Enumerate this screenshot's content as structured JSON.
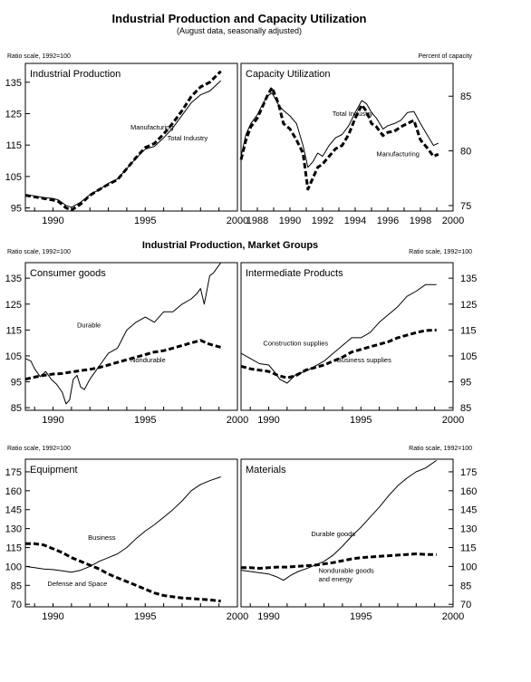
{
  "header": {
    "title": "Industrial Production and Capacity Utilization",
    "subtitle": "(August data, seasonally adjusted)"
  },
  "notes": {
    "ratio_scale": "Ratio scale, 1992=100",
    "percent_of_capacity": "Percent of capacity"
  },
  "section_title": "Industrial Production, Market Groups",
  "chart_data": [
    {
      "id": "ip",
      "type": "line",
      "title": "Industrial Production",
      "y_note": "Ratio scale, 1992=100",
      "xlim": [
        1988.5,
        2000
      ],
      "xticks": [
        1990,
        1995,
        2000
      ],
      "ylim": [
        94,
        141
      ],
      "yticks": [
        95,
        105,
        115,
        125,
        135
      ],
      "series": [
        {
          "name": "Manufacturing",
          "style": "dashed",
          "x": [
            1988.5,
            1989,
            1989.5,
            1990,
            1990.3,
            1990.7,
            1991,
            1991.5,
            1992,
            1992.5,
            1993,
            1993.5,
            1994,
            1994.5,
            1995,
            1995.5,
            1996,
            1996.5,
            1997,
            1997.5,
            1998,
            1998.5,
            1999.1
          ],
          "y": [
            99,
            98.5,
            98,
            97.5,
            97,
            95,
            94.3,
            96.2,
            99,
            100.8,
            102.5,
            104,
            107.5,
            111,
            114.2,
            115.5,
            118.5,
            122,
            126,
            130.5,
            133.5,
            135,
            138.5
          ]
        },
        {
          "name": "Total Industry",
          "style": "solid",
          "x": [
            1988.5,
            1989,
            1989.5,
            1990,
            1990.3,
            1990.7,
            1991,
            1991.5,
            1992,
            1992.5,
            1993,
            1993.5,
            1994,
            1994.5,
            1995,
            1995.5,
            1996,
            1996.5,
            1997,
            1997.5,
            1998,
            1998.5,
            1999.1
          ],
          "y": [
            99.3,
            98.8,
            98.3,
            98,
            97.5,
            95.8,
            95.2,
            96.8,
            99.2,
            100.8,
            102.8,
            104.2,
            107.5,
            110.8,
            113.7,
            114.6,
            117.3,
            120.5,
            124.5,
            128.5,
            131,
            132.2,
            135.5
          ]
        }
      ],
      "annotations": [
        {
          "text": "Manufacturing",
          "x": 1994.2,
          "y": 120
        },
        {
          "text": "Total Industry",
          "x": 1996.2,
          "y": 116.5
        }
      ]
    },
    {
      "id": "cu",
      "type": "line",
      "title": "Capacity Utilization",
      "y_note": "Percent of capacity",
      "xlim": [
        1987,
        2000
      ],
      "xticks": [
        1988,
        1990,
        1992,
        1994,
        1996,
        1998,
        2000
      ],
      "ylim": [
        74.5,
        88
      ],
      "yticks": [
        75,
        80,
        85
      ],
      "series": [
        {
          "name": "Total Industry",
          "style": "solid",
          "x": [
            1987,
            1987.3,
            1987.6,
            1988,
            1988.3,
            1988.6,
            1988.9,
            1989.3,
            1989.6,
            1990,
            1990.4,
            1990.8,
            1991.1,
            1991.4,
            1991.7,
            1992,
            1992.4,
            1992.8,
            1993.2,
            1993.6,
            1994,
            1994.4,
            1994.7,
            1995,
            1995.3,
            1995.7,
            1996,
            1996.4,
            1996.8,
            1997.2,
            1997.6,
            1998,
            1998.4,
            1998.8,
            1999.1
          ],
          "y": [
            79.5,
            81.5,
            82.5,
            83.3,
            84.2,
            85,
            85.3,
            84.2,
            83.7,
            83.2,
            82.5,
            80.5,
            78.5,
            79,
            79.8,
            79.5,
            80.5,
            81.2,
            81.5,
            82.3,
            83.5,
            84.6,
            84.3,
            83.5,
            83,
            82,
            82.3,
            82.5,
            82.8,
            83.5,
            83.6,
            82.5,
            81.5,
            80.5,
            80.7
          ]
        },
        {
          "name": "Manufacturing",
          "style": "dashed",
          "x": [
            1987,
            1987.3,
            1987.6,
            1988,
            1988.3,
            1988.6,
            1988.9,
            1989.3,
            1989.6,
            1990,
            1990.4,
            1990.8,
            1991.1,
            1991.4,
            1991.7,
            1992,
            1992.4,
            1992.8,
            1993.2,
            1993.6,
            1994,
            1994.4,
            1994.7,
            1995,
            1995.3,
            1995.7,
            1996,
            1996.4,
            1996.8,
            1997.2,
            1997.6,
            1998,
            1998.4,
            1998.8,
            1999.1
          ],
          "y": [
            79.2,
            81,
            82.2,
            83,
            84,
            85,
            85.8,
            84.3,
            82.5,
            82,
            81,
            79.8,
            76.5,
            77.5,
            78.5,
            78.8,
            79.5,
            80.2,
            80.5,
            81.5,
            83,
            84.2,
            83.6,
            82.5,
            82.2,
            81.4,
            81.7,
            81.8,
            82.2,
            82.5,
            82.8,
            81,
            80.3,
            79.5,
            79.7
          ]
        }
      ],
      "annotations": [
        {
          "text": "Total Industry",
          "x": 1992.6,
          "y": 83.2
        },
        {
          "text": "Manufacturing",
          "x": 1995.3,
          "y": 79.5
        }
      ]
    },
    {
      "id": "consumer",
      "type": "line",
      "title": "Consumer goods",
      "y_note": "Ratio scale, 1992=100",
      "xlim": [
        1988.5,
        2000
      ],
      "xticks": [
        1990,
        1995,
        2000
      ],
      "ylim": [
        84,
        141
      ],
      "yticks": [
        85,
        95,
        105,
        115,
        125,
        135
      ],
      "series": [
        {
          "name": "Durable",
          "style": "solid",
          "x": [
            1988.5,
            1988.8,
            1989,
            1989.3,
            1989.6,
            1989.9,
            1990.2,
            1990.5,
            1990.7,
            1990.9,
            1991.1,
            1991.3,
            1991.5,
            1991.7,
            1992,
            1992.3,
            1992.6,
            1993,
            1993.5,
            1994,
            1994.5,
            1995,
            1995.5,
            1996,
            1996.5,
            1997,
            1997.5,
            1997.8,
            1998,
            1998.2,
            1998.5,
            1998.7,
            1999.1
          ],
          "y": [
            104,
            103,
            100,
            97,
            99,
            96,
            94,
            91,
            86.5,
            88,
            96,
            97.5,
            93,
            92,
            96,
            99,
            102,
            106,
            108,
            115,
            118,
            120,
            118,
            122,
            122,
            125,
            127,
            129,
            131,
            125,
            136,
            137,
            141
          ]
        },
        {
          "name": "Nondurable",
          "style": "dashed",
          "x": [
            1988.5,
            1989,
            1989.5,
            1990,
            1990.5,
            1991,
            1991.5,
            1992,
            1992.5,
            1993,
            1993.5,
            1994,
            1994.5,
            1995,
            1995.5,
            1996,
            1996.5,
            1997,
            1997.5,
            1998,
            1998.5,
            1999.1
          ],
          "y": [
            96,
            96.8,
            97.5,
            98,
            98.2,
            98.8,
            99.3,
            99.8,
            100.5,
            101.5,
            102.5,
            103.5,
            104.5,
            105.5,
            106.5,
            107,
            108,
            109,
            110,
            111,
            109.5,
            108.3
          ]
        }
      ],
      "annotations": [
        {
          "text": "Durable",
          "x": 1991.3,
          "y": 116
        },
        {
          "text": "Nondurable",
          "x": 1994.2,
          "y": 102.5
        }
      ]
    },
    {
      "id": "intermediate",
      "type": "line",
      "title": "Intermediate Products",
      "y_note": "Ratio scale, 1992=100",
      "xlim": [
        1988.5,
        2000
      ],
      "xticks": [
        1990,
        1995,
        2000
      ],
      "ylim": [
        84,
        141
      ],
      "yticks": [
        85,
        95,
        105,
        115,
        125,
        135
      ],
      "series": [
        {
          "name": "Construction supplies",
          "style": "solid",
          "x": [
            1988.5,
            1989,
            1989.5,
            1990,
            1990.3,
            1990.6,
            1991,
            1991.5,
            1992,
            1992.5,
            1993,
            1993.5,
            1994,
            1994.5,
            1995,
            1995.5,
            1996,
            1996.5,
            1997,
            1997.5,
            1998,
            1998.5,
            1999.1
          ],
          "y": [
            106,
            104,
            102,
            101.5,
            99,
            96,
            94.5,
            98,
            99,
            101,
            103,
            106,
            109,
            112,
            112,
            114,
            118,
            121,
            124,
            128,
            130,
            132.5,
            132.5
          ]
        },
        {
          "name": "Business supplies",
          "style": "dashed",
          "x": [
            1988.5,
            1989,
            1989.5,
            1990,
            1990.5,
            1991,
            1991.5,
            1992,
            1992.5,
            1993,
            1993.5,
            1994,
            1994.5,
            1995,
            1995.5,
            1996,
            1996.5,
            1997,
            1997.5,
            1998,
            1998.5,
            1999.1
          ],
          "y": [
            101,
            100,
            99.5,
            99,
            97.5,
            96.5,
            97.5,
            99.5,
            100.5,
            101.5,
            103,
            104.5,
            106.5,
            107.5,
            108.5,
            109.5,
            110.5,
            112,
            113,
            114,
            114.8,
            115
          ]
        }
      ],
      "annotations": [
        {
          "text": "Construction supplies",
          "x": 1989.7,
          "y": 109
        },
        {
          "text": "Business supplies",
          "x": 1993.7,
          "y": 102.5
        }
      ]
    },
    {
      "id": "equipment",
      "type": "line",
      "title": "Equipment",
      "y_note": "Ratio scale, 1992=100",
      "xlim": [
        1988.5,
        2000
      ],
      "xticks": [
        1990,
        1995,
        2000
      ],
      "ylim": [
        68,
        185
      ],
      "yticks": [
        70,
        85,
        100,
        115,
        130,
        145,
        160,
        175
      ],
      "series": [
        {
          "name": "Business",
          "style": "solid",
          "x": [
            1988.5,
            1989,
            1989.5,
            1990,
            1990.5,
            1991,
            1991.5,
            1992,
            1992.5,
            1993,
            1993.5,
            1994,
            1994.5,
            1995,
            1995.5,
            1996,
            1996.5,
            1997,
            1997.5,
            1998,
            1998.5,
            1999.1
          ],
          "y": [
            100,
            99,
            98,
            97.5,
            96.5,
            95.5,
            97,
            100,
            104,
            107,
            110,
            115,
            122,
            128,
            133,
            139,
            145,
            152,
            160,
            165,
            168,
            171
          ]
        },
        {
          "name": "Defense and Space",
          "style": "dashed",
          "x": [
            1988.5,
            1989,
            1989.5,
            1990,
            1990.5,
            1991,
            1991.5,
            1992,
            1992.5,
            1993,
            1993.5,
            1994,
            1994.5,
            1995,
            1995.5,
            1996,
            1996.5,
            1997,
            1997.5,
            1998,
            1998.5,
            1999.1
          ],
          "y": [
            118,
            118,
            117,
            114,
            111,
            107,
            104,
            101,
            98,
            94,
            91,
            88,
            85,
            82,
            79,
            77,
            76,
            75,
            74.5,
            74,
            73.5,
            72.5
          ]
        }
      ],
      "annotations": [
        {
          "text": "Business",
          "x": 1991.9,
          "y": 121
        },
        {
          "text": "Defense and Space",
          "x": 1989.7,
          "y": 84.5
        }
      ]
    },
    {
      "id": "materials",
      "type": "line",
      "title": "Materials",
      "y_note": "Ratio scale, 1992=100",
      "xlim": [
        1988.5,
        2000
      ],
      "xticks": [
        1990,
        1995,
        2000
      ],
      "ylim": [
        68,
        185
      ],
      "yticks": [
        70,
        85,
        100,
        115,
        130,
        145,
        160,
        175
      ],
      "series": [
        {
          "name": "Durable goods",
          "style": "solid",
          "x": [
            1988.5,
            1989,
            1989.5,
            1990,
            1990.4,
            1990.8,
            1991.2,
            1991.6,
            1992,
            1992.5,
            1993,
            1993.5,
            1994,
            1994.5,
            1995,
            1995.5,
            1996,
            1996.5,
            1997,
            1997.5,
            1998,
            1998.5,
            1999.1
          ],
          "y": [
            97,
            96,
            95,
            94,
            92,
            89,
            93,
            96,
            98,
            101,
            104,
            109,
            116,
            124,
            131,
            139,
            147,
            156,
            164,
            170,
            175,
            178,
            184
          ]
        },
        {
          "name": "Nondurable goods and energy",
          "style": "dashed",
          "x": [
            1988.5,
            1989,
            1989.5,
            1990,
            1990.5,
            1991,
            1991.5,
            1992,
            1992.5,
            1993,
            1993.5,
            1994,
            1994.5,
            1995,
            1995.5,
            1996,
            1996.5,
            1997,
            1997.5,
            1998,
            1998.5,
            1999.1
          ],
          "y": [
            99,
            99,
            98.5,
            99,
            99.5,
            99.5,
            100,
            100.5,
            101,
            102,
            103,
            104.5,
            106,
            107,
            107.5,
            108,
            108.5,
            109,
            109.5,
            110,
            109.5,
            109.5
          ]
        }
      ],
      "annotations": [
        {
          "text": "Durable goods",
          "x": 1992.3,
          "y": 124
        },
        {
          "text": "Nondurable goods",
          "x": 1992.7,
          "y": 95
        },
        {
          "text": "and energy",
          "x": 1992.7,
          "y": 88
        }
      ]
    }
  ]
}
